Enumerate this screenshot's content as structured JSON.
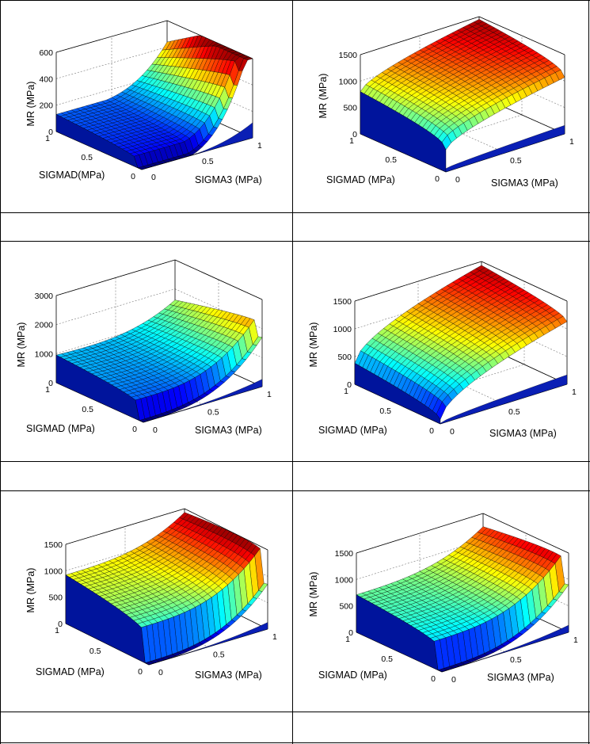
{
  "charts": [
    {
      "id": "chart-1",
      "chart_data": {
        "type": "surface",
        "xlabel": "SIGMAD(MPa)",
        "ylabel": "SIGMA3 (MPa)",
        "zlabel": "MR (MPa)",
        "xlim": [
          0,
          1
        ],
        "ylim": [
          0,
          1
        ],
        "zlim": [
          0,
          600
        ],
        "zticks": [
          0,
          200,
          400,
          600
        ],
        "xticks": [
          0,
          0.5,
          1
        ],
        "yticks": [
          0,
          0.5,
          1
        ],
        "colormap": "jet",
        "grid": true
      },
      "captions": [],
      "xtick_labels": [
        "1",
        "0.5",
        "0"
      ],
      "ytick_labels": [
        "0",
        "0.5",
        "1"
      ],
      "ztick_labels": [
        "0",
        "200",
        "400",
        "600"
      ]
    },
    {
      "id": "chart-2",
      "chart_data": {
        "type": "surface",
        "xlabel": "SIGMAD (MPa)",
        "ylabel": "SIGMA3 (MPa)",
        "zlabel": "MR (MPa)",
        "xlim": [
          0,
          1
        ],
        "ylim": [
          0,
          1
        ],
        "zlim": [
          0,
          1500
        ],
        "zticks": [
          0,
          500,
          1000,
          1500
        ],
        "xticks": [
          0,
          0.5,
          1
        ],
        "yticks": [
          0,
          0.5,
          1
        ],
        "colormap": "jet",
        "grid": true
      },
      "xtick_labels": [
        "1",
        "0.5",
        "0"
      ],
      "ytick_labels": [
        "0",
        "0.5",
        "1"
      ],
      "ztick_labels": [
        "0",
        "500",
        "1000",
        "1500"
      ]
    },
    {
      "id": "chart-3",
      "chart_data": {
        "type": "surface",
        "xlabel": "SIGMAD (MPa)",
        "ylabel": "SIGMA3 (MPa)",
        "zlabel": "MR (MPa)",
        "xlim": [
          0,
          1
        ],
        "ylim": [
          0,
          1
        ],
        "zlim": [
          0,
          3000
        ],
        "zticks": [
          0,
          1000,
          2000,
          3000
        ],
        "xticks": [
          0,
          0.5,
          1
        ],
        "yticks": [
          0,
          0.5,
          1
        ],
        "colormap": "jet",
        "grid": true
      },
      "xtick_labels": [
        "1",
        "0.5",
        "0"
      ],
      "ytick_labels": [
        "0",
        "0.5",
        "1"
      ],
      "ztick_labels": [
        "0",
        "1000",
        "2000",
        "3000"
      ]
    },
    {
      "id": "chart-4",
      "chart_data": {
        "type": "surface",
        "xlabel": "SIGMAD (MPa)",
        "ylabel": "SIGMA3 (MPa)",
        "zlabel": "MR (MPa)",
        "xlim": [
          0,
          1
        ],
        "ylim": [
          0,
          1
        ],
        "zlim": [
          0,
          1500
        ],
        "zticks": [
          0,
          500,
          1000,
          1500
        ],
        "xticks": [
          0,
          0.5,
          1
        ],
        "yticks": [
          0,
          0.5,
          1
        ],
        "colormap": "jet",
        "grid": true
      },
      "xtick_labels": [
        "1",
        "0.5",
        "0"
      ],
      "ytick_labels": [
        "0",
        "0.5",
        "1"
      ],
      "ztick_labels": [
        "0",
        "500",
        "1000",
        "1500"
      ]
    },
    {
      "id": "chart-5",
      "chart_data": {
        "type": "surface",
        "xlabel": "SIGMAD (MPa)",
        "ylabel": "SIGMA3 (MPa)",
        "zlabel": "MR (MPa)",
        "xlim": [
          0,
          1
        ],
        "ylim": [
          0,
          1
        ],
        "zlim": [
          0,
          1500
        ],
        "zticks": [
          0,
          500,
          1000,
          1500
        ],
        "xticks": [
          0,
          0.5,
          1
        ],
        "yticks": [
          0,
          0.5,
          1
        ],
        "colormap": "jet",
        "grid": true
      },
      "xtick_labels": [
        "1",
        "0.5",
        "0"
      ],
      "ytick_labels": [
        "0",
        "0.5",
        "1"
      ],
      "ztick_labels": [
        "0",
        "500",
        "1000",
        "1500"
      ]
    },
    {
      "id": "chart-6",
      "chart_data": {
        "type": "surface",
        "xlabel": "SIGMAD (MPa)",
        "ylabel": "SIGMA3 (MPa)",
        "zlabel": "MR (MPa)",
        "xlim": [
          0,
          1
        ],
        "ylim": [
          0,
          1
        ],
        "zlim": [
          0,
          1500
        ],
        "zticks": [
          0,
          500,
          1000,
          1500
        ],
        "xticks": [
          0,
          0.5,
          1
        ],
        "yticks": [
          0,
          0.5,
          1
        ],
        "colormap": "jet",
        "grid": true
      },
      "xtick_labels": [
        "1",
        "0.5",
        "0"
      ],
      "ytick_labels": [
        "0",
        "0.5",
        "1"
      ],
      "ztick_labels": [
        "0",
        "500",
        "1000",
        "1500"
      ]
    }
  ],
  "captions": [
    "",
    "",
    "",
    "",
    "",
    ""
  ]
}
